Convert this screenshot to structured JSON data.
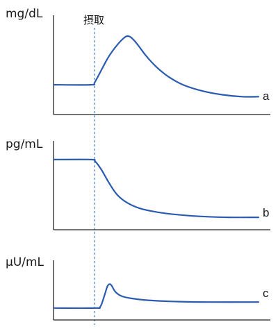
{
  "intake_label": "摂取",
  "colors": {
    "curve": "#2a5bb0",
    "axis": "#222222",
    "marker": "#4a7fc8"
  },
  "chart_data": [
    {
      "type": "line",
      "ylabel": "mg/dL",
      "series": [
        {
          "name": "a",
          "points": [
            [
              0,
              0.3
            ],
            [
              0.18,
              0.3
            ],
            [
              0.2,
              0.33
            ],
            [
              0.26,
              0.56
            ],
            [
              0.3,
              0.68
            ],
            [
              0.34,
              0.77
            ],
            [
              0.36,
              0.79
            ],
            [
              0.38,
              0.77
            ],
            [
              0.41,
              0.7
            ],
            [
              0.45,
              0.59
            ],
            [
              0.5,
              0.48
            ],
            [
              0.56,
              0.38
            ],
            [
              0.63,
              0.3
            ],
            [
              0.72,
              0.24
            ],
            [
              0.82,
              0.2
            ],
            [
              0.92,
              0.18
            ],
            [
              1.0,
              0.18
            ]
          ]
        }
      ]
    },
    {
      "type": "line",
      "ylabel": "pg/mL",
      "series": [
        {
          "name": "b",
          "points": [
            [
              0,
              0.79
            ],
            [
              0.18,
              0.79
            ],
            [
              0.2,
              0.77
            ],
            [
              0.23,
              0.68
            ],
            [
              0.27,
              0.52
            ],
            [
              0.31,
              0.39
            ],
            [
              0.36,
              0.3
            ],
            [
              0.42,
              0.24
            ],
            [
              0.5,
              0.2
            ],
            [
              0.6,
              0.17
            ],
            [
              0.72,
              0.15
            ],
            [
              0.85,
              0.14
            ],
            [
              1.0,
              0.14
            ]
          ]
        }
      ]
    },
    {
      "type": "line",
      "ylabel": "μU/mL",
      "series": [
        {
          "name": "c",
          "points": [
            [
              0,
              0.2
            ],
            [
              0.2,
              0.2
            ],
            [
              0.225,
              0.22
            ],
            [
              0.245,
              0.4
            ],
            [
              0.26,
              0.56
            ],
            [
              0.27,
              0.6
            ],
            [
              0.28,
              0.58
            ],
            [
              0.3,
              0.47
            ],
            [
              0.33,
              0.4
            ],
            [
              0.38,
              0.36
            ],
            [
              0.46,
              0.33
            ],
            [
              0.58,
              0.31
            ],
            [
              0.75,
              0.3
            ],
            [
              1.0,
              0.3
            ]
          ]
        }
      ]
    }
  ]
}
